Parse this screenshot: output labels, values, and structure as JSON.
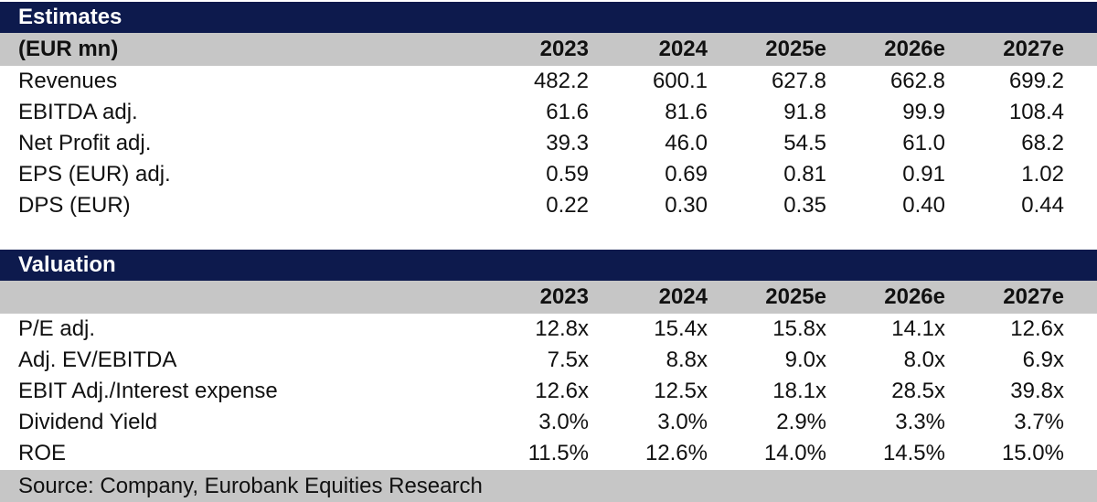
{
  "estimates": {
    "title": "Estimates",
    "unit_label": "(EUR mn)",
    "years": [
      "2023",
      "2024",
      "2025e",
      "2026e",
      "2027e"
    ],
    "rows": [
      {
        "label": "Revenues",
        "values": [
          "482.2",
          "600.1",
          "627.8",
          "662.8",
          "699.2"
        ]
      },
      {
        "label": "EBITDA adj.",
        "values": [
          "61.6",
          "81.6",
          "91.8",
          "99.9",
          "108.4"
        ]
      },
      {
        "label": "Net Profit adj.",
        "values": [
          "39.3",
          "46.0",
          "54.5",
          "61.0",
          "68.2"
        ]
      },
      {
        "label": "EPS (EUR) adj.",
        "values": [
          "0.59",
          "0.69",
          "0.81",
          "0.91",
          "1.02"
        ]
      },
      {
        "label": "DPS (EUR)",
        "values": [
          "0.22",
          "0.30",
          "0.35",
          "0.40",
          "0.44"
        ]
      }
    ]
  },
  "valuation": {
    "title": "Valuation",
    "unit_label": "",
    "years": [
      "2023",
      "2024",
      "2025e",
      "2026e",
      "2027e"
    ],
    "rows": [
      {
        "label": "P/E adj.",
        "values": [
          "12.8x",
          "15.4x",
          "15.8x",
          "14.1x",
          "12.6x"
        ]
      },
      {
        "label": "Adj. EV/EBITDA",
        "values": [
          "7.5x",
          "8.8x",
          "9.0x",
          "8.0x",
          "6.9x"
        ]
      },
      {
        "label": "EBIT Adj./Interest expense",
        "values": [
          "12.6x",
          "12.5x",
          "18.1x",
          "28.5x",
          "39.8x"
        ]
      },
      {
        "label": "Dividend Yield",
        "values": [
          "3.0%",
          "3.0%",
          "2.9%",
          "3.3%",
          "3.7%"
        ]
      },
      {
        "label": "ROE",
        "values": [
          "11.5%",
          "12.6%",
          "14.0%",
          "14.5%",
          "15.0%"
        ]
      }
    ]
  },
  "source": "Source: Company, Eurobank Equities Research",
  "colors": {
    "title_bar": "#0d1a4d",
    "header_bar": "#c6c6c6"
  }
}
